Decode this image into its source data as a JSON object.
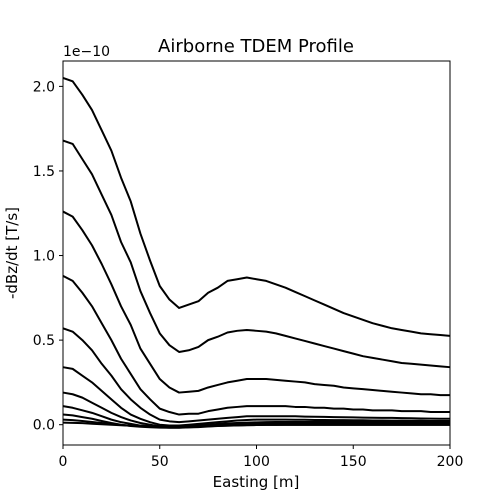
{
  "chart_data": {
    "type": "line",
    "title": "Airborne TDEM Profile",
    "xlabel": "Easting [m]",
    "ylabel": "-dBz/dt [T/s]",
    "y_scale_label": "1e−10",
    "xlim": [
      0,
      200
    ],
    "ylim": [
      -0.12,
      2.15
    ],
    "x_ticks": [
      0,
      50,
      100,
      150,
      200
    ],
    "x_tick_labels": [
      "0",
      "50",
      "100",
      "150",
      "200"
    ],
    "y_ticks": [
      0.0,
      0.5,
      1.0,
      1.5,
      2.0
    ],
    "y_tick_labels": [
      "0.0",
      "0.5",
      "1.0",
      "1.5",
      "2.0"
    ],
    "grid": false,
    "legend": false,
    "line_color": "#000000",
    "x": [
      0,
      5,
      10,
      15,
      20,
      25,
      30,
      35,
      40,
      45,
      50,
      55,
      60,
      65,
      70,
      75,
      80,
      85,
      90,
      95,
      100,
      105,
      110,
      115,
      120,
      125,
      130,
      135,
      140,
      145,
      150,
      155,
      160,
      165,
      170,
      175,
      180,
      185,
      190,
      195,
      200
    ],
    "series": [
      {
        "values": [
          2.05,
          2.03,
          1.95,
          1.86,
          1.74,
          1.62,
          1.46,
          1.32,
          1.13,
          0.97,
          0.82,
          0.74,
          0.69,
          0.71,
          0.73,
          0.78,
          0.81,
          0.85,
          0.86,
          0.87,
          0.86,
          0.85,
          0.83,
          0.81,
          0.785,
          0.76,
          0.735,
          0.71,
          0.685,
          0.66,
          0.64,
          0.62,
          0.6,
          0.585,
          0.57,
          0.56,
          0.55,
          0.54,
          0.535,
          0.53,
          0.525
        ]
      },
      {
        "values": [
          1.68,
          1.66,
          1.57,
          1.48,
          1.36,
          1.24,
          1.08,
          0.96,
          0.79,
          0.66,
          0.54,
          0.47,
          0.43,
          0.44,
          0.46,
          0.5,
          0.52,
          0.545,
          0.555,
          0.56,
          0.555,
          0.55,
          0.54,
          0.525,
          0.51,
          0.495,
          0.48,
          0.465,
          0.45,
          0.435,
          0.42,
          0.405,
          0.395,
          0.385,
          0.375,
          0.365,
          0.36,
          0.355,
          0.35,
          0.345,
          0.34
        ]
      },
      {
        "values": [
          1.26,
          1.23,
          1.15,
          1.06,
          0.95,
          0.83,
          0.7,
          0.59,
          0.45,
          0.36,
          0.27,
          0.22,
          0.19,
          0.195,
          0.2,
          0.22,
          0.235,
          0.25,
          0.26,
          0.27,
          0.27,
          0.27,
          0.265,
          0.26,
          0.255,
          0.25,
          0.24,
          0.235,
          0.23,
          0.22,
          0.215,
          0.21,
          0.205,
          0.2,
          0.195,
          0.19,
          0.185,
          0.18,
          0.18,
          0.175,
          0.175
        ]
      },
      {
        "values": [
          0.88,
          0.85,
          0.78,
          0.7,
          0.6,
          0.5,
          0.39,
          0.3,
          0.21,
          0.15,
          0.095,
          0.075,
          0.06,
          0.065,
          0.065,
          0.08,
          0.09,
          0.1,
          0.105,
          0.11,
          0.11,
          0.11,
          0.11,
          0.11,
          0.105,
          0.105,
          0.1,
          0.1,
          0.095,
          0.095,
          0.09,
          0.09,
          0.085,
          0.085,
          0.085,
          0.08,
          0.08,
          0.08,
          0.075,
          0.075,
          0.075
        ]
      },
      {
        "values": [
          0.57,
          0.55,
          0.5,
          0.44,
          0.36,
          0.29,
          0.21,
          0.15,
          0.1,
          0.06,
          0.03,
          0.02,
          0.015,
          0.02,
          0.025,
          0.03,
          0.035,
          0.04,
          0.045,
          0.05,
          0.05,
          0.05,
          0.05,
          0.05,
          0.05,
          0.048,
          0.047,
          0.046,
          0.045,
          0.044,
          0.043,
          0.042,
          0.041,
          0.04,
          0.04,
          0.039,
          0.038,
          0.037,
          0.036,
          0.035,
          0.035
        ]
      },
      {
        "values": [
          0.34,
          0.33,
          0.29,
          0.25,
          0.2,
          0.15,
          0.1,
          0.06,
          0.035,
          0.015,
          0.0,
          -0.005,
          -0.005,
          0.0,
          0.005,
          0.01,
          0.015,
          0.02,
          0.025,
          0.028,
          0.03,
          0.03,
          0.03,
          0.03,
          0.029,
          0.029,
          0.028,
          0.028,
          0.027,
          0.027,
          0.026,
          0.026,
          0.025,
          0.025,
          0.024,
          0.024,
          0.023,
          0.023,
          0.022,
          0.022,
          0.022
        ]
      },
      {
        "values": [
          0.19,
          0.18,
          0.16,
          0.13,
          0.1,
          0.07,
          0.045,
          0.025,
          0.01,
          0.0,
          -0.01,
          -0.012,
          -0.012,
          -0.008,
          -0.004,
          0.0,
          0.005,
          0.008,
          0.01,
          0.012,
          0.014,
          0.015,
          0.016,
          0.016,
          0.016,
          0.016,
          0.016,
          0.016,
          0.016,
          0.016,
          0.016,
          0.016,
          0.016,
          0.016,
          0.016,
          0.016,
          0.016,
          0.016,
          0.016,
          0.016,
          0.016
        ]
      },
      {
        "values": [
          0.11,
          0.1,
          0.085,
          0.07,
          0.05,
          0.03,
          0.015,
          0.005,
          -0.005,
          -0.01,
          -0.015,
          -0.017,
          -0.017,
          -0.015,
          -0.012,
          -0.008,
          -0.004,
          0.0,
          0.002,
          0.004,
          0.005,
          0.006,
          0.007,
          0.008,
          0.008,
          0.008,
          0.008,
          0.008,
          0.008,
          0.008,
          0.008,
          0.008,
          0.008,
          0.008,
          0.008,
          0.008,
          0.008,
          0.008,
          0.008,
          0.008,
          0.008
        ]
      },
      {
        "values": [
          0.06,
          0.055,
          0.045,
          0.035,
          0.022,
          0.01,
          0.0,
          -0.008,
          -0.012,
          -0.015,
          -0.017,
          -0.018,
          -0.018,
          -0.016,
          -0.014,
          -0.011,
          -0.008,
          -0.006,
          -0.004,
          -0.002,
          0.0,
          0.001,
          0.002,
          0.002,
          0.003,
          0.003,
          0.003,
          0.003,
          0.003,
          0.003,
          0.003,
          0.003,
          0.003,
          0.003,
          0.003,
          0.003,
          0.003,
          0.003,
          0.003,
          0.003,
          0.003
        ]
      },
      {
        "values": [
          0.03,
          0.027,
          0.022,
          0.016,
          0.01,
          0.004,
          -0.002,
          -0.006,
          -0.009,
          -0.011,
          -0.012,
          -0.013,
          -0.013,
          -0.012,
          -0.011,
          -0.009,
          -0.007,
          -0.005,
          -0.004,
          -0.003,
          -0.002,
          -0.001,
          -0.001,
          0.0,
          0.0,
          0.0,
          0.0,
          0.0,
          0.0,
          0.0,
          0.0,
          0.0,
          0.0,
          0.0,
          0.0,
          0.0,
          0.0,
          0.0,
          0.0,
          0.0,
          0.0
        ]
      },
      {
        "values": [
          0.012,
          0.011,
          0.009,
          0.006,
          0.003,
          0.0,
          -0.003,
          -0.005,
          -0.006,
          -0.007,
          -0.008,
          -0.008,
          -0.008,
          -0.008,
          -0.007,
          -0.006,
          -0.005,
          -0.004,
          -0.003,
          -0.002,
          -0.002,
          -0.001,
          -0.001,
          -0.001,
          -0.001,
          -0.001,
          -0.001,
          -0.001,
          -0.001,
          -0.001,
          -0.001,
          -0.001,
          -0.001,
          -0.001,
          -0.001,
          -0.001,
          -0.001,
          -0.001,
          -0.001,
          -0.001,
          -0.001
        ]
      }
    ]
  }
}
